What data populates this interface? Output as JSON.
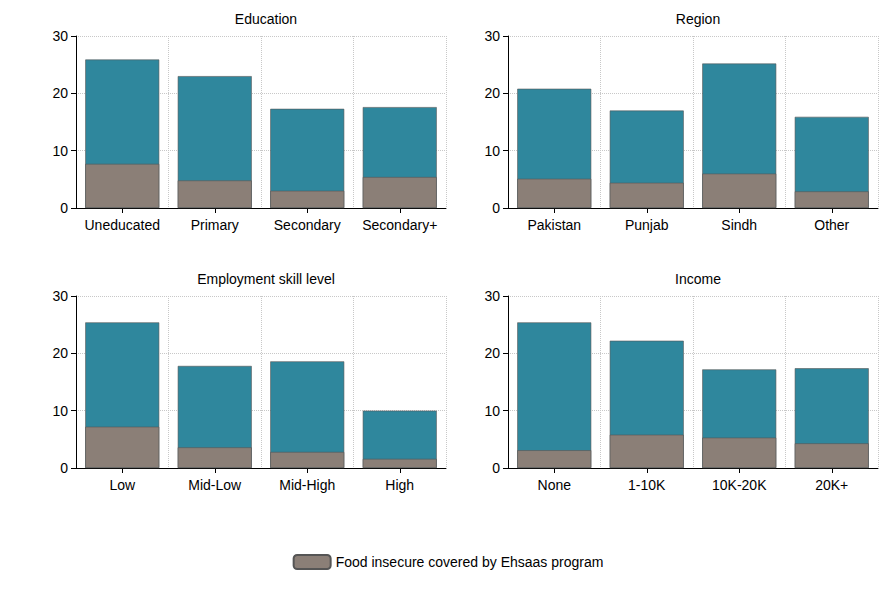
{
  "chart_data": [
    {
      "type": "bar",
      "title": "Education",
      "categories": [
        "Uneducated",
        "Primary",
        "Secondary",
        "Secondary+"
      ],
      "series": [
        {
          "color": "#2f879d",
          "values": [
            25.9,
            23.0,
            17.3,
            17.6
          ]
        },
        {
          "name": "Food insecure covered by Ehsaas program",
          "color": "#8b7f77",
          "values": [
            7.7,
            4.8,
            3.0,
            5.4
          ]
        }
      ],
      "ylim": [
        0,
        30
      ],
      "yticks": [
        0,
        10,
        20,
        30
      ],
      "grid": true,
      "stacked": false,
      "legend": "bottom"
    },
    {
      "type": "bar",
      "title": "Region",
      "categories": [
        "Pakistan",
        "Punjab",
        "Sindh",
        "Other"
      ],
      "series": [
        {
          "color": "#2f879d",
          "values": [
            20.8,
            17.0,
            25.2,
            15.9
          ]
        },
        {
          "name": "Food insecure covered by Ehsaas program",
          "color": "#8b7f77",
          "values": [
            5.1,
            4.4,
            6.0,
            2.9
          ]
        }
      ],
      "ylim": [
        0,
        30
      ],
      "yticks": [
        0,
        10,
        20,
        30
      ],
      "grid": true,
      "stacked": false,
      "legend": "bottom"
    },
    {
      "type": "bar",
      "title": "Employment skill level",
      "categories": [
        "Low",
        "Mid-Low",
        "Mid-High",
        "High"
      ],
      "series": [
        {
          "color": "#2f879d",
          "values": [
            25.4,
            17.8,
            18.6,
            10.0
          ]
        },
        {
          "name": "Food insecure covered by Ehsaas program",
          "color": "#8b7f77",
          "values": [
            7.2,
            3.6,
            2.8,
            1.6
          ]
        }
      ],
      "ylim": [
        0,
        30
      ],
      "yticks": [
        0,
        10,
        20,
        30
      ],
      "grid": true,
      "stacked": false,
      "legend": "bottom"
    },
    {
      "type": "bar",
      "title": "Income",
      "categories": [
        "None",
        "1-10K",
        "10K-20K",
        "20K+"
      ],
      "series": [
        {
          "color": "#2f879d",
          "values": [
            25.4,
            22.2,
            17.2,
            17.4
          ]
        },
        {
          "name": "Food insecure covered by Ehsaas program",
          "color": "#8b7f77",
          "values": [
            3.1,
            5.8,
            5.3,
            4.3
          ]
        }
      ],
      "ylim": [
        0,
        30
      ],
      "yticks": [
        0,
        10,
        20,
        30
      ],
      "grid": true,
      "stacked": false,
      "legend": "bottom"
    }
  ]
}
